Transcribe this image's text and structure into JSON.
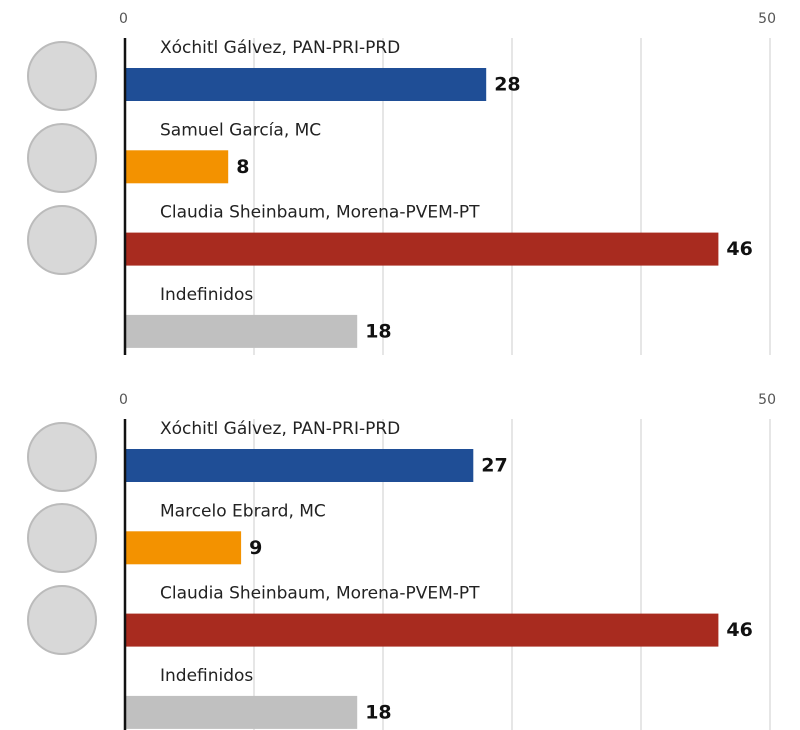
{
  "chart_data": [
    {
      "type": "bar",
      "categories": [
        "Xóchitl Gálvez, PAN-PRI-PRD",
        "Samuel García, MC",
        "Claudia Sheinbaum, Morena-PVEM-PT",
        "Indefinidos"
      ],
      "values": [
        28,
        8,
        46,
        18
      ],
      "colors": [
        "#1f4e96",
        "#f39200",
        "#a82b1f",
        "#c0c0c0"
      ],
      "xlim": [
        0,
        50
      ],
      "xticks": [
        0,
        50
      ],
      "minor_xticks": [
        10,
        20,
        30,
        40
      ],
      "grid": true
    },
    {
      "type": "bar",
      "categories": [
        "Xóchitl Gálvez, PAN-PRI-PRD",
        "Marcelo Ebrard, MC",
        "Claudia Sheinbaum, Morena-PVEM-PT",
        "Indefinidos"
      ],
      "values": [
        27,
        9,
        46,
        18
      ],
      "colors": [
        "#1f4e96",
        "#f39200",
        "#a82b1f",
        "#c0c0c0"
      ],
      "xlim": [
        0,
        50
      ],
      "xticks": [
        0,
        50
      ],
      "minor_xticks": [
        10,
        20,
        30,
        40
      ],
      "grid": true
    }
  ]
}
